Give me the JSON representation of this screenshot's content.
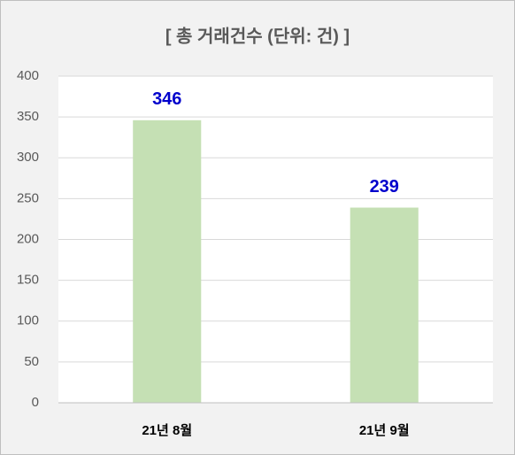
{
  "chart_data": {
    "type": "bar",
    "title": "[ 총 거래건수 (단위: 건) ]",
    "categories": [
      "21년 8월",
      "21년 9월"
    ],
    "values": [
      346,
      239
    ],
    "color": "#c5e0b4",
    "value_label_color": "#0000cc",
    "ylim": [
      0,
      400
    ],
    "yticks": [
      0,
      50,
      100,
      150,
      200,
      250,
      300,
      350,
      400
    ],
    "grid": true
  }
}
